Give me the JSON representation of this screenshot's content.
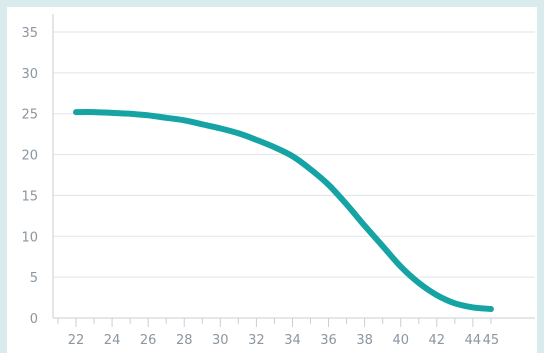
{
  "chart_data": {
    "type": "line",
    "title": "",
    "xlabel": "",
    "ylabel": "",
    "xlim": [
      21,
      45
    ],
    "ylim": [
      0,
      35
    ],
    "x_ticks": [
      22,
      24,
      26,
      28,
      30,
      32,
      34,
      36,
      38,
      40,
      42,
      44,
      45
    ],
    "y_ticks": [
      0,
      5,
      10,
      15,
      20,
      25,
      30,
      35
    ],
    "grid": "horizontal",
    "legend": "none",
    "series": [
      {
        "color": "#16a3a3",
        "x": [
          22,
          23,
          24,
          25,
          26,
          27,
          28,
          29,
          30,
          31,
          32,
          33,
          34,
          35,
          36,
          37,
          38,
          39,
          40,
          41,
          42,
          43,
          44,
          45
        ],
        "y": [
          25.2,
          25.2,
          25.1,
          25.0,
          24.8,
          24.5,
          24.2,
          23.7,
          23.2,
          22.6,
          21.8,
          20.9,
          19.8,
          18.2,
          16.3,
          13.9,
          11.3,
          8.8,
          6.3,
          4.3,
          2.8,
          1.8,
          1.3,
          1.1
        ]
      }
    ]
  }
}
